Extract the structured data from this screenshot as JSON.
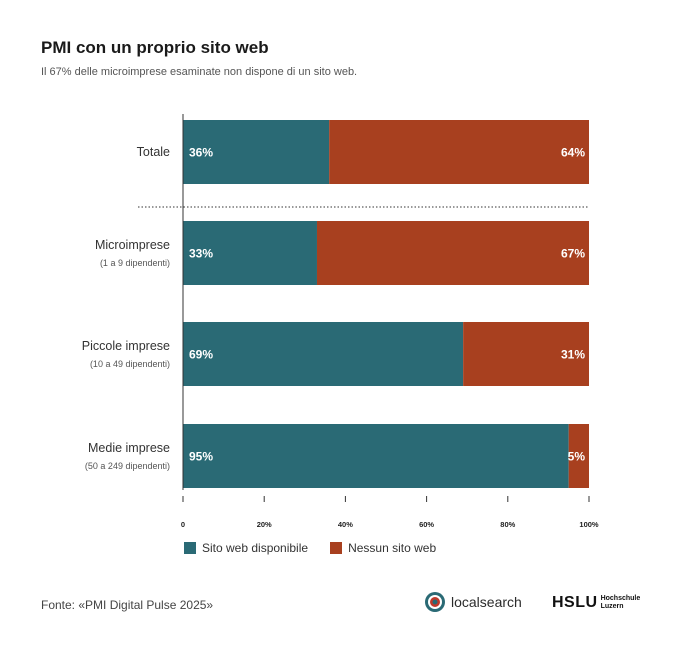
{
  "title": "PMI con un proprio sito web",
  "subtitle": "Il 67% delle microimprese esaminate non dispone di un sito web.",
  "source": "Fonte: «PMI Digital Pulse 2025»",
  "logos": {
    "localsearch": "localsearch",
    "hslu": "HSLU",
    "hslu_line1": "Hochschule",
    "hslu_line2": "Luzern"
  },
  "colors": {
    "teal": "#2a6a75",
    "rust": "#a8401f"
  },
  "chart_data": {
    "type": "bar",
    "orientation": "horizontal",
    "stacked": true,
    "categories": [
      {
        "label": "Totale",
        "sublabel": ""
      },
      {
        "label": "Microimprese",
        "sublabel": "(1 a 9 dipendenti)"
      },
      {
        "label": "Piccole imprese",
        "sublabel": "(10 a 49 dipendenti)"
      },
      {
        "label": "Medie imprese",
        "sublabel": "(50 a 249 dipendenti)"
      }
    ],
    "series": [
      {
        "name": "Sito web disponibile",
        "color": "#2a6a75",
        "values": [
          36,
          33,
          69,
          95
        ],
        "labels": [
          "36%",
          "33%",
          "69%",
          "95%"
        ]
      },
      {
        "name": "Nessun sito web",
        "color": "#a8401f",
        "values": [
          64,
          67,
          31,
          5
        ],
        "labels": [
          "64%",
          "67%",
          "31%",
          "5%"
        ]
      }
    ],
    "xlim": [
      0,
      100
    ],
    "ticks": [
      "0",
      "20%",
      "40%",
      "60%",
      "80%",
      "100%"
    ],
    "legend_position": "bottom-left",
    "separator_after_first": true
  }
}
